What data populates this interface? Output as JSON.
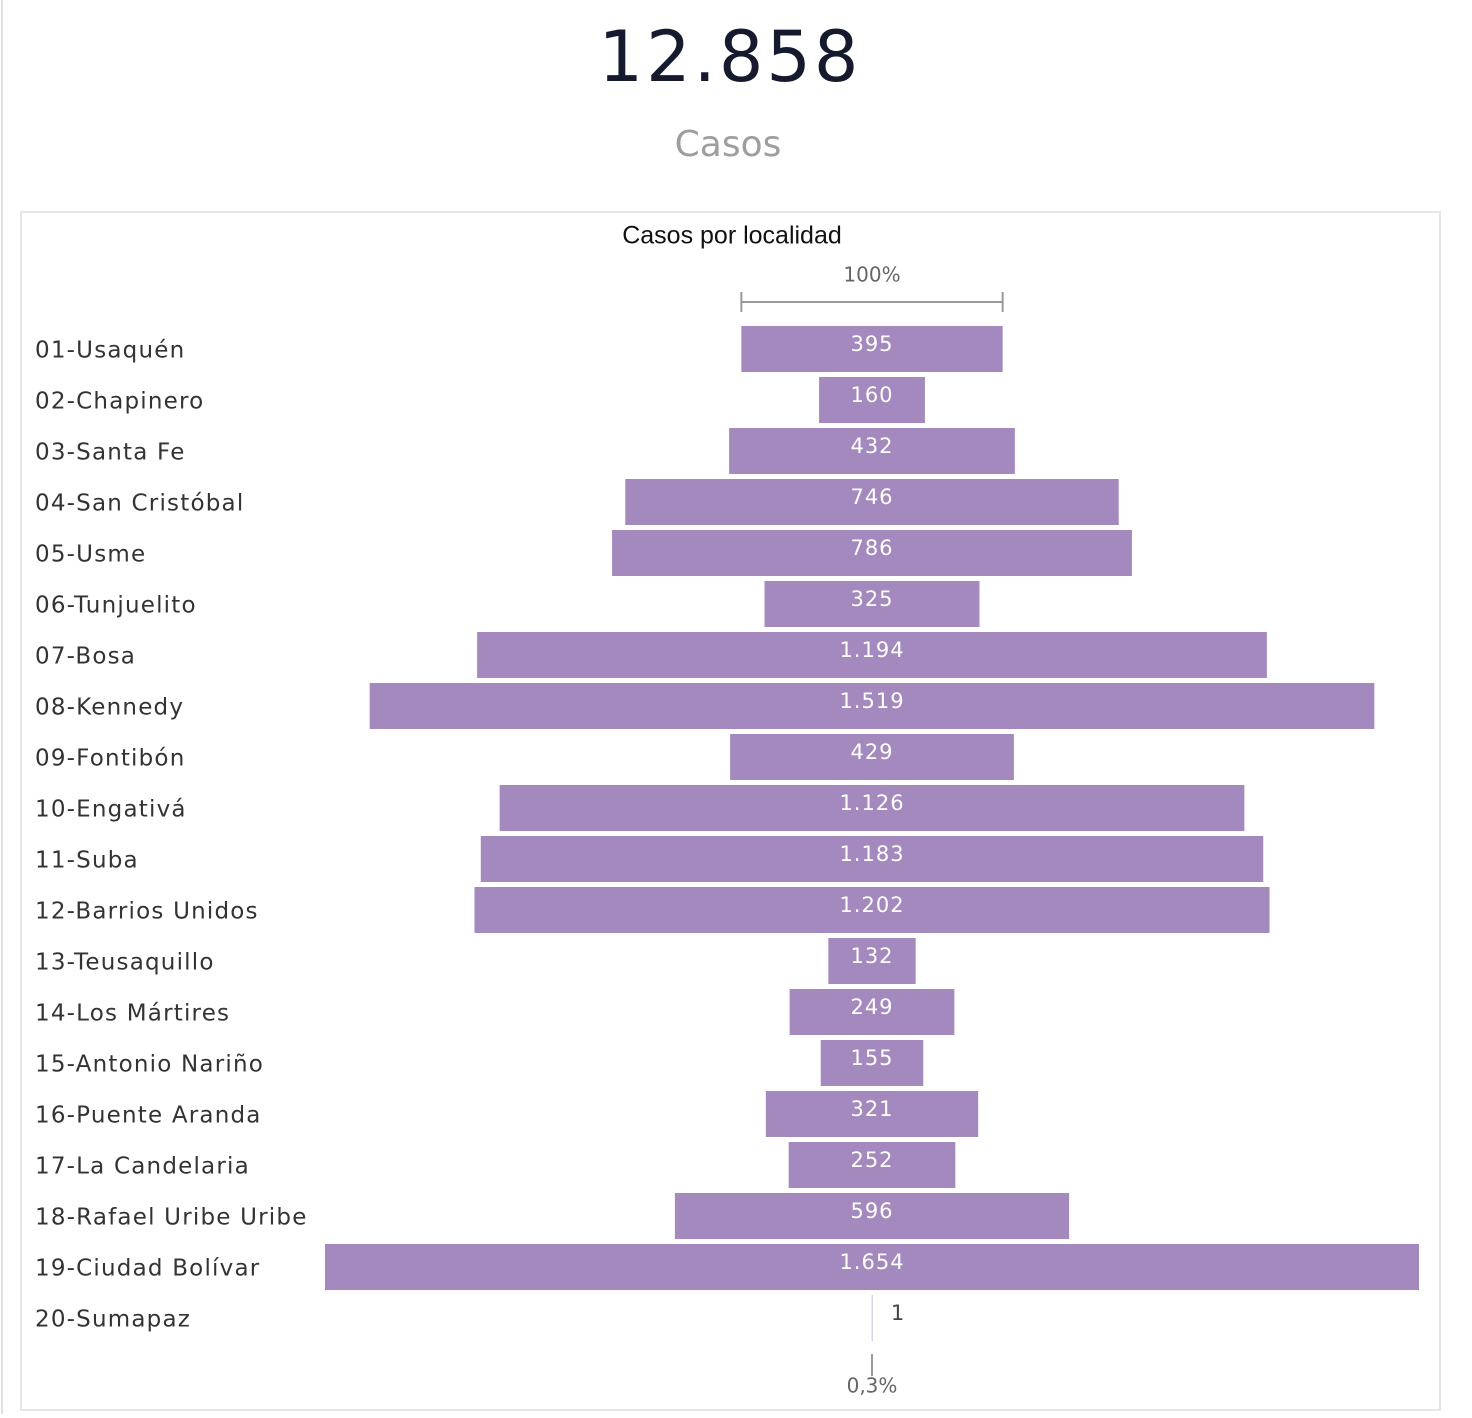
{
  "kpi": {
    "value_label": "12.858",
    "caption": "Casos"
  },
  "chart_data": {
    "type": "funnel",
    "title": "Casos por localidad",
    "top_label": "100%",
    "bottom_label": "0,3%",
    "color": "#a389bd",
    "categories": [
      "01-Usaquén",
      "02-Chapinero",
      "03-Santa Fe",
      "04-San Cristóbal",
      "05-Usme",
      "06-Tunjuelito",
      "07-Bosa",
      "08-Kennedy",
      "09-Fontibón",
      "10-Engativá",
      "11-Suba",
      "12-Barrios Unidos",
      "13-Teusaquillo",
      "14-Los Mártires",
      "15-Antonio Nariño",
      "16-Puente Aranda",
      "17-La Candelaria",
      "18-Rafael Uribe Uribe",
      "19-Ciudad Bolívar",
      "20-Sumapaz"
    ],
    "values": [
      395,
      160,
      432,
      746,
      786,
      325,
      1194,
      1519,
      429,
      1126,
      1183,
      1202,
      132,
      249,
      155,
      321,
      252,
      596,
      1654,
      1
    ],
    "value_labels": [
      "395",
      "160",
      "432",
      "746",
      "786",
      "325",
      "1.194",
      "1.519",
      "429",
      "1.126",
      "1.183",
      "1.202",
      "132",
      "249",
      "155",
      "321",
      "252",
      "596",
      "1.654",
      "1"
    ]
  }
}
